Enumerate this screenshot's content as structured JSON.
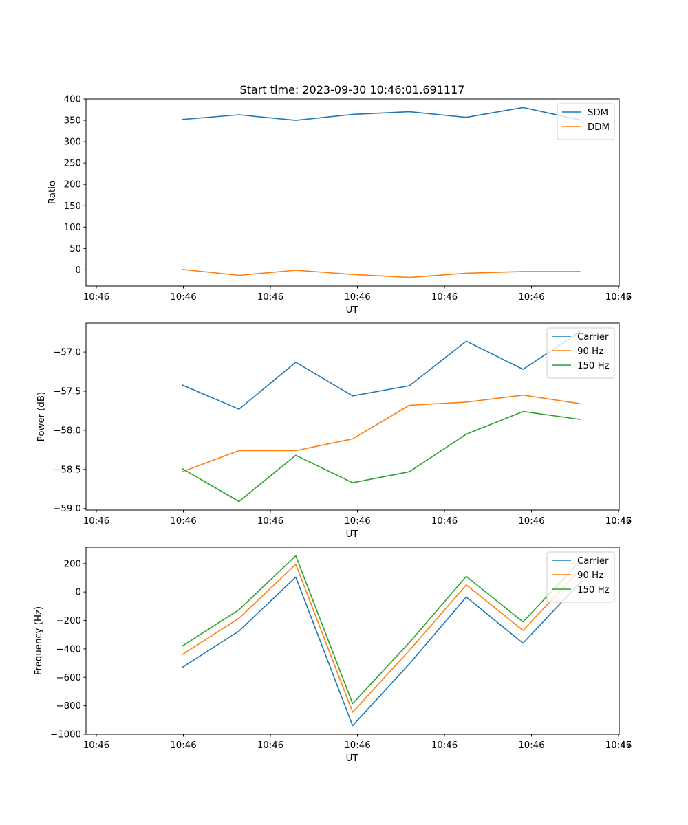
{
  "title": "Start time: 2023-09-30 10:46:01.691117",
  "colors": {
    "blue": "#1f77b4",
    "orange": "#ff7f0e",
    "green": "#2ca02c"
  },
  "chart_data": [
    {
      "type": "line",
      "id": "ratio",
      "xlabel": "UT",
      "ylabel": "Ratio",
      "xticklabels": [
        "10:46",
        "10:46",
        "10:46",
        "10:46",
        "10:46",
        "10:46",
        "10:46"
      ],
      "xtick_end_label": "10:47",
      "x": [
        0.6,
        1.25,
        1.9,
        2.55,
        3.2,
        3.85,
        4.5,
        5.15
      ],
      "xlim": [
        -0.5,
        5.6
      ],
      "ylim": [
        -38,
        400
      ],
      "yticks": [
        0,
        50,
        100,
        150,
        200,
        250,
        300,
        350,
        400
      ],
      "legend_loc": "upper right",
      "series": [
        {
          "name": "SDM",
          "color": "#1f77b4",
          "values": [
            352,
            363,
            350,
            364,
            370,
            357,
            380,
            351
          ]
        },
        {
          "name": "DDM",
          "color": "#ff7f0e",
          "values": [
            1,
            -13,
            -1,
            -11,
            -18,
            -8,
            -4,
            -4
          ]
        }
      ]
    },
    {
      "type": "line",
      "id": "power",
      "xlabel": "UT",
      "ylabel": "Power (dB)",
      "xticklabels": [
        "10:46",
        "10:46",
        "10:46",
        "10:46",
        "10:46",
        "10:46",
        "10:46"
      ],
      "xtick_end_label": "10:47",
      "x": [
        0.6,
        1.25,
        1.9,
        2.55,
        3.2,
        3.85,
        4.5,
        5.15
      ],
      "xlim": [
        -0.5,
        5.6
      ],
      "ylim": [
        -59.02,
        -56.63
      ],
      "yticks": [
        -59.0,
        -58.5,
        -58.0,
        -57.5,
        -57.0
      ],
      "legend_loc": "upper right",
      "series": [
        {
          "name": "Carrier",
          "color": "#1f77b4",
          "values": [
            -57.42,
            -57.73,
            -57.13,
            -57.56,
            -57.43,
            -56.86,
            -57.22,
            -56.74
          ]
        },
        {
          "name": "90 Hz",
          "color": "#ff7f0e",
          "values": [
            -58.53,
            -58.26,
            -58.26,
            -58.11,
            -57.68,
            -57.64,
            -57.55,
            -57.66
          ]
        },
        {
          "name": "150 Hz",
          "color": "#2ca02c",
          "values": [
            -58.49,
            -58.91,
            -58.32,
            -58.67,
            -58.53,
            -58.05,
            -57.76,
            -57.86
          ]
        }
      ]
    },
    {
      "type": "line",
      "id": "frequency",
      "xlabel": "UT",
      "ylabel": "Frequency (Hz)",
      "xticklabels": [
        "10:46",
        "10:46",
        "10:46",
        "10:46",
        "10:46",
        "10:46",
        "10:46"
      ],
      "xtick_end_label": "10:47",
      "x": [
        0.6,
        1.25,
        1.9,
        2.55,
        3.2,
        3.85,
        4.5,
        5.15
      ],
      "xlim": [
        -0.5,
        5.6
      ],
      "ylim": [
        -1000,
        315
      ],
      "yticks": [
        -1000,
        -800,
        -600,
        -400,
        -200,
        0,
        200
      ],
      "legend_loc": "upper right",
      "series": [
        {
          "name": "Carrier",
          "color": "#1f77b4",
          "values": [
            -530,
            -275,
            105,
            -940,
            -505,
            -35,
            -360,
            65
          ]
        },
        {
          "name": "90 Hz",
          "color": "#ff7f0e",
          "values": [
            -440,
            -185,
            195,
            -845,
            -410,
            50,
            -270,
            155
          ]
        },
        {
          "name": "150 Hz",
          "color": "#2ca02c",
          "values": [
            -380,
            -125,
            255,
            -785,
            -355,
            110,
            -210,
            215
          ]
        }
      ]
    }
  ]
}
